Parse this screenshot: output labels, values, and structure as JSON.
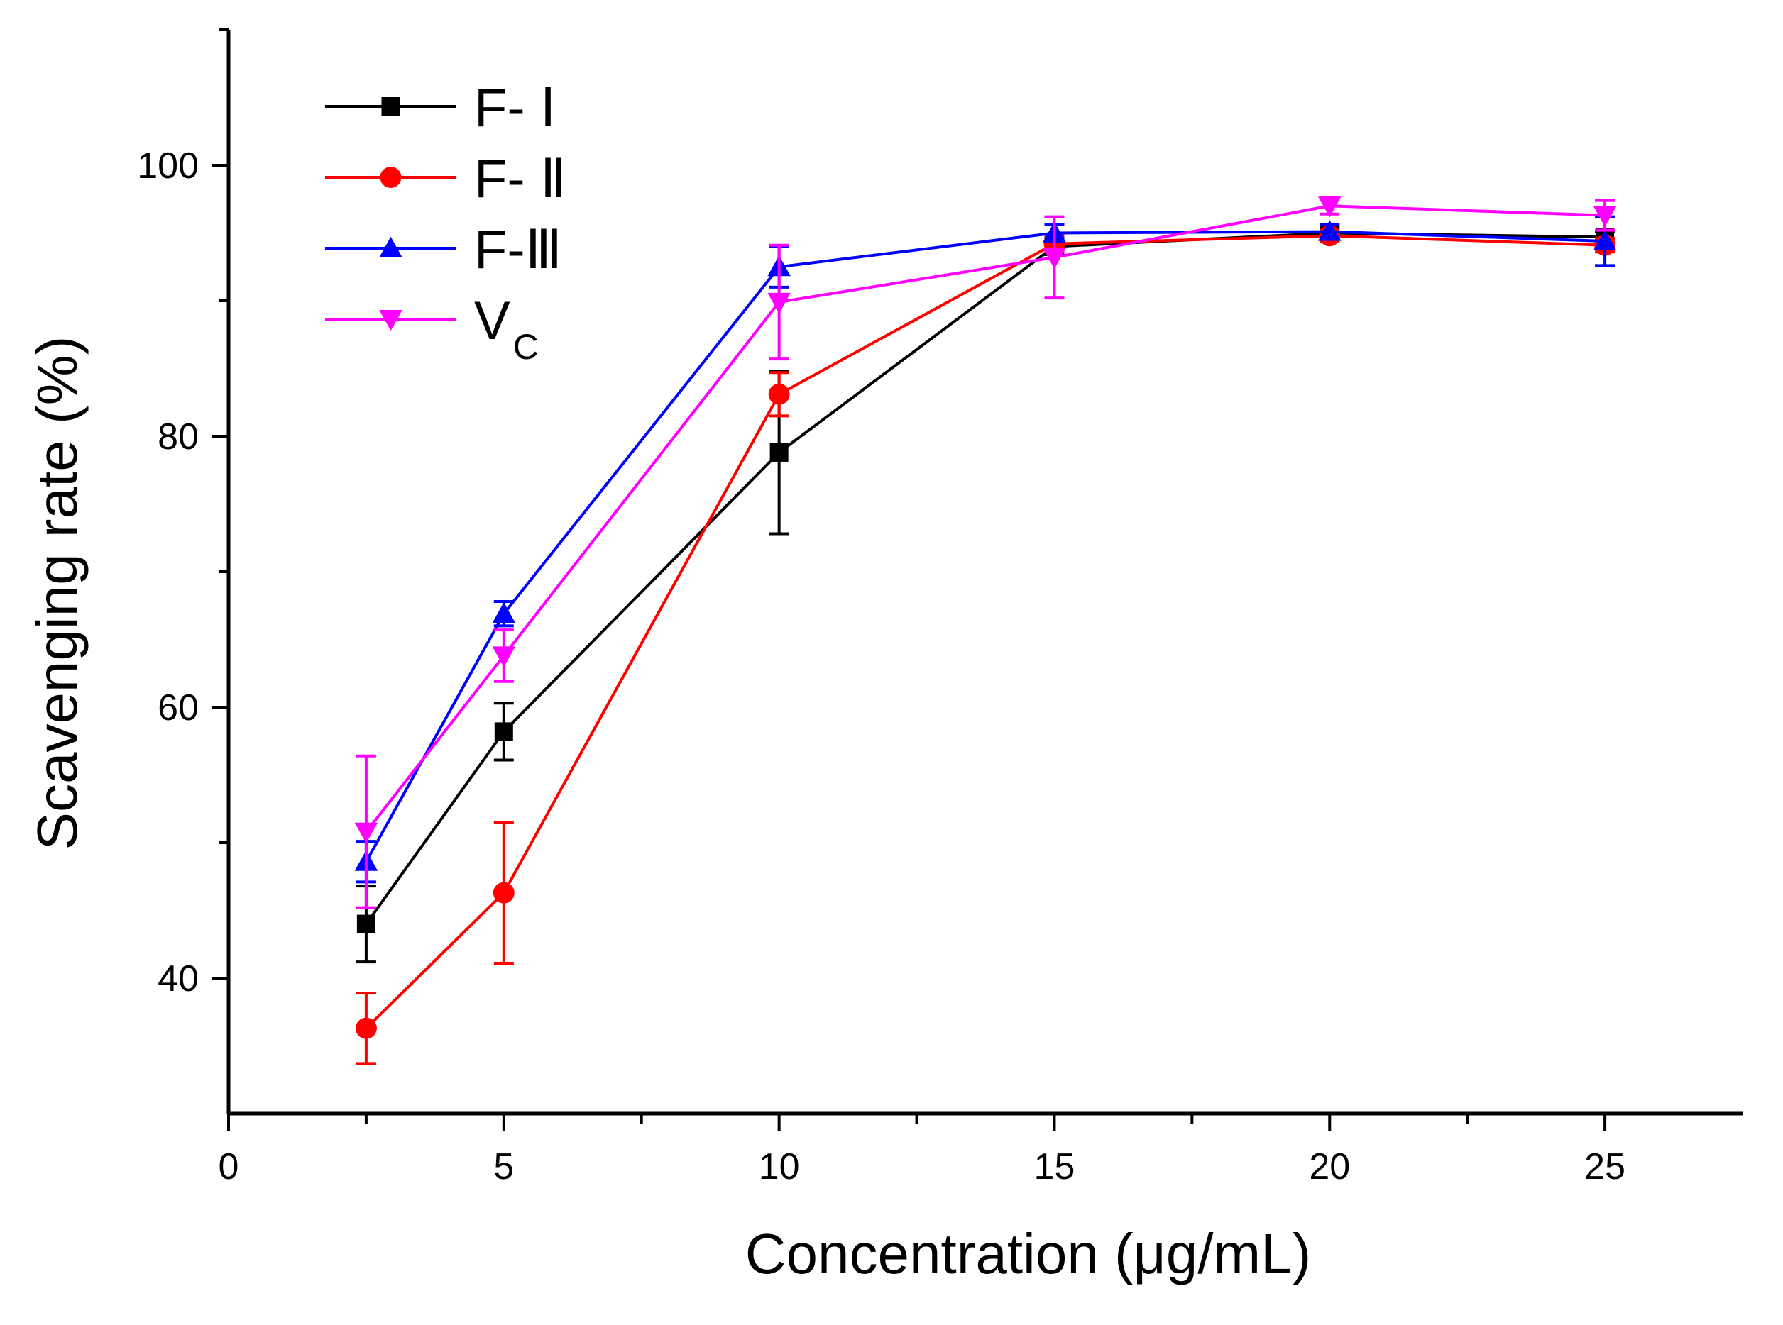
{
  "chart_data": {
    "type": "line",
    "xlabel": "Concentration (μg/mL)",
    "ylabel": "Scavenging rate (%)",
    "xlim": [
      0,
      27.5
    ],
    "ylim": [
      30,
      110
    ],
    "xticks": [
      0,
      5,
      10,
      15,
      20,
      25
    ],
    "yticks": [
      40,
      60,
      80,
      100
    ],
    "x_minor_ticks": [
      2.5,
      7.5,
      12.5,
      17.5,
      22.5
    ],
    "y_minor_ticks": [
      50,
      70,
      90,
      110
    ],
    "x": [
      2.5,
      5,
      10,
      15,
      20,
      25
    ],
    "legend_position": "top-left",
    "series": [
      {
        "name": "F- Ⅰ",
        "color": "#000000",
        "marker": "square",
        "values": [
          44.0,
          58.2,
          78.8,
          94.0,
          95.0,
          94.7
        ],
        "errors": [
          2.8,
          2.1,
          6.0,
          0.6,
          0.4,
          0.4
        ]
      },
      {
        "name": "F- Ⅱ",
        "color": "#ff0000",
        "marker": "circle",
        "values": [
          36.3,
          46.3,
          83.1,
          94.2,
          94.8,
          94.1
        ],
        "errors": [
          2.6,
          5.2,
          1.6,
          0.6,
          0.4,
          0.5
        ]
      },
      {
        "name": "F-Ⅲ",
        "color": "#0000ff",
        "marker": "triangle-up",
        "values": [
          48.6,
          66.9,
          92.5,
          95.0,
          95.1,
          94.4
        ],
        "errors": [
          1.5,
          0.9,
          1.5,
          0.6,
          0.5,
          1.8
        ]
      },
      {
        "name": "V",
        "subscript": "C",
        "color": "#ff00ff",
        "marker": "triangle-down",
        "values": [
          50.8,
          63.8,
          89.9,
          93.2,
          97.0,
          96.3
        ],
        "errors": [
          5.6,
          1.9,
          4.2,
          3.0,
          0.6,
          1.1
        ]
      }
    ]
  }
}
